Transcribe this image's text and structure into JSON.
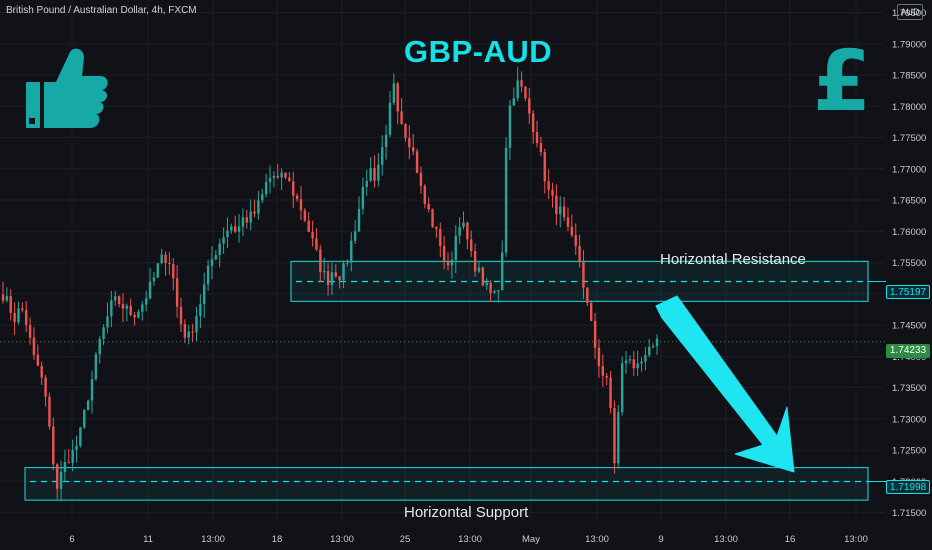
{
  "header": {
    "symbol_title": "British Pound / Australian Dollar, 4h, FXCM",
    "currency": "AUD"
  },
  "chart_data": {
    "type": "candlestick",
    "title": "GBP-AUD",
    "y_ticks": [
      "1.79500",
      "1.79000",
      "1.78500",
      "1.78000",
      "1.77500",
      "1.77000",
      "1.76500",
      "1.76000",
      "1.75500",
      "1.75000",
      "1.74500",
      "1.74000",
      "1.73500",
      "1.73000",
      "1.72500",
      "1.72000",
      "1.71500"
    ],
    "y_tick_values": [
      1.795,
      1.79,
      1.785,
      1.78,
      1.775,
      1.77,
      1.765,
      1.76,
      1.755,
      1.75,
      1.745,
      1.74,
      1.735,
      1.73,
      1.725,
      1.72,
      1.715
    ],
    "ylim": [
      1.7135,
      1.797
    ],
    "x_ticks": [
      "6",
      "11",
      "13:00",
      "18",
      "13:00",
      "25",
      "13:00",
      "May",
      "13:00",
      "9",
      "13:00",
      "16",
      "13:00"
    ],
    "price_labels": {
      "resistance": "1.75197",
      "current": "1.74233",
      "support": "1.71998"
    },
    "levels": {
      "resistance": 1.75197,
      "resistance_zone": [
        1.7488,
        1.7552
      ],
      "support": 1.71998,
      "support_zone": [
        1.717,
        1.7222
      ],
      "current": 1.74233
    },
    "annotations": {
      "resistance_label": "Horizontal Resistance",
      "support_label": "Horizontal Support"
    },
    "path": [
      1.75,
      1.748,
      1.746,
      1.748,
      1.745,
      1.74,
      1.738,
      1.734,
      1.726,
      1.719,
      1.722,
      1.724,
      1.725,
      1.728,
      1.733,
      1.737,
      1.742,
      1.745,
      1.748,
      1.749,
      1.748,
      1.747,
      1.747,
      1.748,
      1.75,
      1.752,
      1.755,
      1.756,
      1.755,
      1.748,
      1.744,
      1.743,
      1.746,
      1.749,
      1.753,
      1.756,
      1.758,
      1.76,
      1.761,
      1.76,
      1.762,
      1.762,
      1.763,
      1.765,
      1.768,
      1.769,
      1.768,
      1.769,
      1.767,
      1.765,
      1.763,
      1.76,
      1.757,
      1.754,
      1.752,
      1.754,
      1.753,
      1.754,
      1.758,
      1.762,
      1.767,
      1.77,
      1.767,
      1.772,
      1.775,
      1.785,
      1.779,
      1.776,
      1.774,
      1.77,
      1.765,
      1.763,
      1.76,
      1.758,
      1.753,
      1.757,
      1.762,
      1.76,
      1.756,
      1.754,
      1.752,
      1.75,
      1.75,
      1.752,
      1.778,
      1.782,
      1.784,
      1.781,
      1.778,
      1.775,
      1.77,
      1.766,
      1.764,
      1.763,
      1.76,
      1.758,
      1.756,
      1.75,
      1.745,
      1.74,
      1.737,
      1.735,
      1.722,
      1.738,
      1.74,
      1.738,
      1.74,
      1.739,
      1.741,
      1.742
    ],
    "candle_colors": {
      "up": "#26a69a",
      "down": "#ef5350"
    }
  },
  "icons": {
    "left": "thumbs-up-icon",
    "right": "pound-sign-icon",
    "accent": "#16e0e6"
  }
}
